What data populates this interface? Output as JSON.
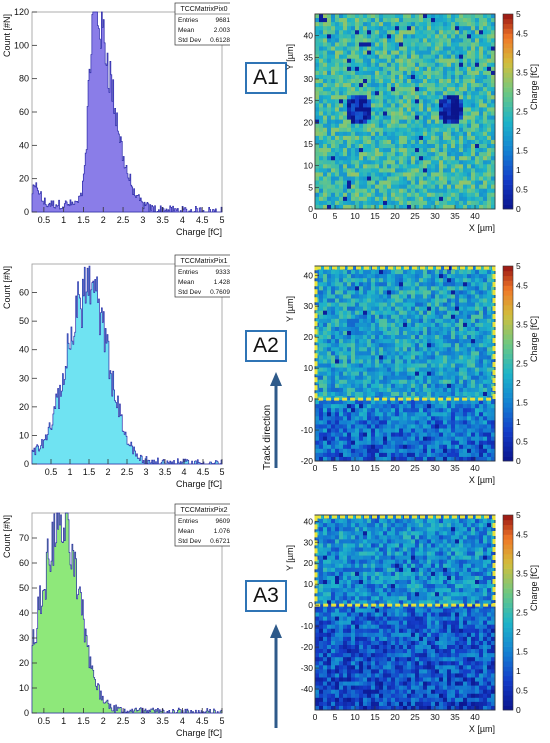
{
  "tags": [
    "A1",
    "A2",
    "A3"
  ],
  "track_label": "Track direction",
  "colors": {
    "hist_fill": [
      "#8a7de8",
      "#6fe3f2",
      "#8ee87a"
    ],
    "hist_line": "#2a2aa8",
    "dash": "#e8e23a",
    "arrow": "#2e5a8a"
  },
  "chart_data": [
    {
      "type": "bar",
      "stat_box": {
        "title": "TCCMatrixPix0",
        "rows": [
          [
            "Entries",
            "9681"
          ],
          [
            "Mean",
            "2.003"
          ],
          [
            "Std Dev",
            "0.6128"
          ]
        ]
      },
      "xlabel": "Charge [fC]",
      "ylabel": "Count [#N]",
      "xlim": [
        0.2,
        5.0
      ],
      "ylim": [
        0,
        120
      ],
      "x_ticks": [
        "0.5",
        "1",
        "1.5",
        "2",
        "2.5",
        "3",
        "3.5",
        "4",
        "4.5",
        "5"
      ],
      "y_ticks": [
        "0",
        "20",
        "40",
        "60",
        "80",
        "100",
        "120"
      ],
      "peak": 1.78,
      "peak_count": 116,
      "sigma_left": 0.14,
      "sigma_right": 0.45
    },
    {
      "type": "heatmap",
      "xlabel": "X [µm]",
      "ylabel": "Y [µm]",
      "zlabel": "Charge [fC]",
      "xlim": [
        0,
        45
      ],
      "ylim": [
        0,
        45
      ],
      "zlim": [
        0,
        5
      ],
      "x_ticks": [
        "0",
        "5",
        "10",
        "15",
        "20",
        "25",
        "30",
        "35",
        "40"
      ],
      "y_ticks": [
        "0",
        "5",
        "10",
        "15",
        "20",
        "25",
        "30",
        "35",
        "40"
      ],
      "z_ticks": [
        "0",
        "0.5",
        "1",
        "1.5",
        "2",
        "2.5",
        "3",
        "3.5",
        "4",
        "4.5",
        "5"
      ],
      "mean_level": 2.5,
      "holes": [
        [
          11,
          23
        ],
        [
          34,
          23
        ]
      ]
    },
    {
      "type": "bar",
      "stat_box": {
        "title": "TCCMatrixPix1",
        "rows": [
          [
            "Entries",
            "9333"
          ],
          [
            "Mean",
            "1.428"
          ],
          [
            "Std Dev",
            "0.7609"
          ]
        ]
      },
      "xlabel": "Charge [fC]",
      "ylabel": "Count [#N]",
      "xlim": [
        0.0,
        5.0
      ],
      "ylim": [
        0,
        70
      ],
      "x_ticks": [
        "0.5",
        "1",
        "1.5",
        "2",
        "2.5",
        "3",
        "3.5",
        "4",
        "4.5",
        "5"
      ],
      "y_ticks": [
        "0",
        "10",
        "20",
        "30",
        "40",
        "50",
        "60"
      ],
      "peak": 1.5,
      "peak_count": 60,
      "sigma_left": 0.55,
      "sigma_right": 0.5
    },
    {
      "type": "heatmap",
      "xlabel": "X [µm]",
      "ylabel": "Y [µm]",
      "zlabel": "Charge [fC]",
      "xlim": [
        0,
        45
      ],
      "ylim": [
        -20,
        43
      ],
      "zlim": [
        0,
        5
      ],
      "x_ticks": [
        "0",
        "5",
        "10",
        "15",
        "20",
        "25",
        "30",
        "35",
        "40"
      ],
      "y_ticks": [
        "-20",
        "-10",
        "0",
        "10",
        "20",
        "30",
        "40"
      ],
      "z_ticks": [
        "0",
        "0.5",
        "1",
        "1.5",
        "2",
        "2.5",
        "3",
        "3.5",
        "4",
        "4.5",
        "5"
      ],
      "mean_level": 1.7,
      "dash_y": 0
    },
    {
      "type": "bar",
      "stat_box": {
        "title": "TCCMatrixPix2",
        "rows": [
          [
            "Entries",
            "9609"
          ],
          [
            "Mean",
            "1.076"
          ],
          [
            "Std Dev",
            "0.6721"
          ]
        ]
      },
      "xlabel": "Charge [fC]",
      "ylabel": "Count [#N]",
      "xlim": [
        0.2,
        5.0
      ],
      "ylim": [
        0,
        80
      ],
      "x_ticks": [
        "0.5",
        "1",
        "1.5",
        "2",
        "2.5",
        "3",
        "3.5",
        "4",
        "4.5",
        "5"
      ],
      "y_ticks": [
        "0",
        "10",
        "20",
        "30",
        "40",
        "50",
        "60",
        "70"
      ],
      "peak": 0.95,
      "peak_count": 72,
      "sigma_left": 0.5,
      "sigma_right": 0.45
    },
    {
      "type": "heatmap",
      "xlabel": "X [µm]",
      "ylabel": "Y [µm]",
      "zlabel": "Charge [fC]",
      "xlim": [
        0,
        45
      ],
      "ylim": [
        -50,
        43
      ],
      "zlim": [
        0,
        5
      ],
      "x_ticks": [
        "0",
        "5",
        "10",
        "15",
        "20",
        "25",
        "30",
        "35",
        "40"
      ],
      "y_ticks": [
        "-40",
        "-30",
        "-20",
        "-10",
        "0",
        "10",
        "20",
        "30",
        "40"
      ],
      "z_ticks": [
        "0",
        "0.5",
        "1",
        "1.5",
        "2",
        "2.5",
        "3",
        "3.5",
        "4",
        "4.5",
        "5"
      ],
      "mean_level": 1.4,
      "dash_y": 0
    }
  ]
}
